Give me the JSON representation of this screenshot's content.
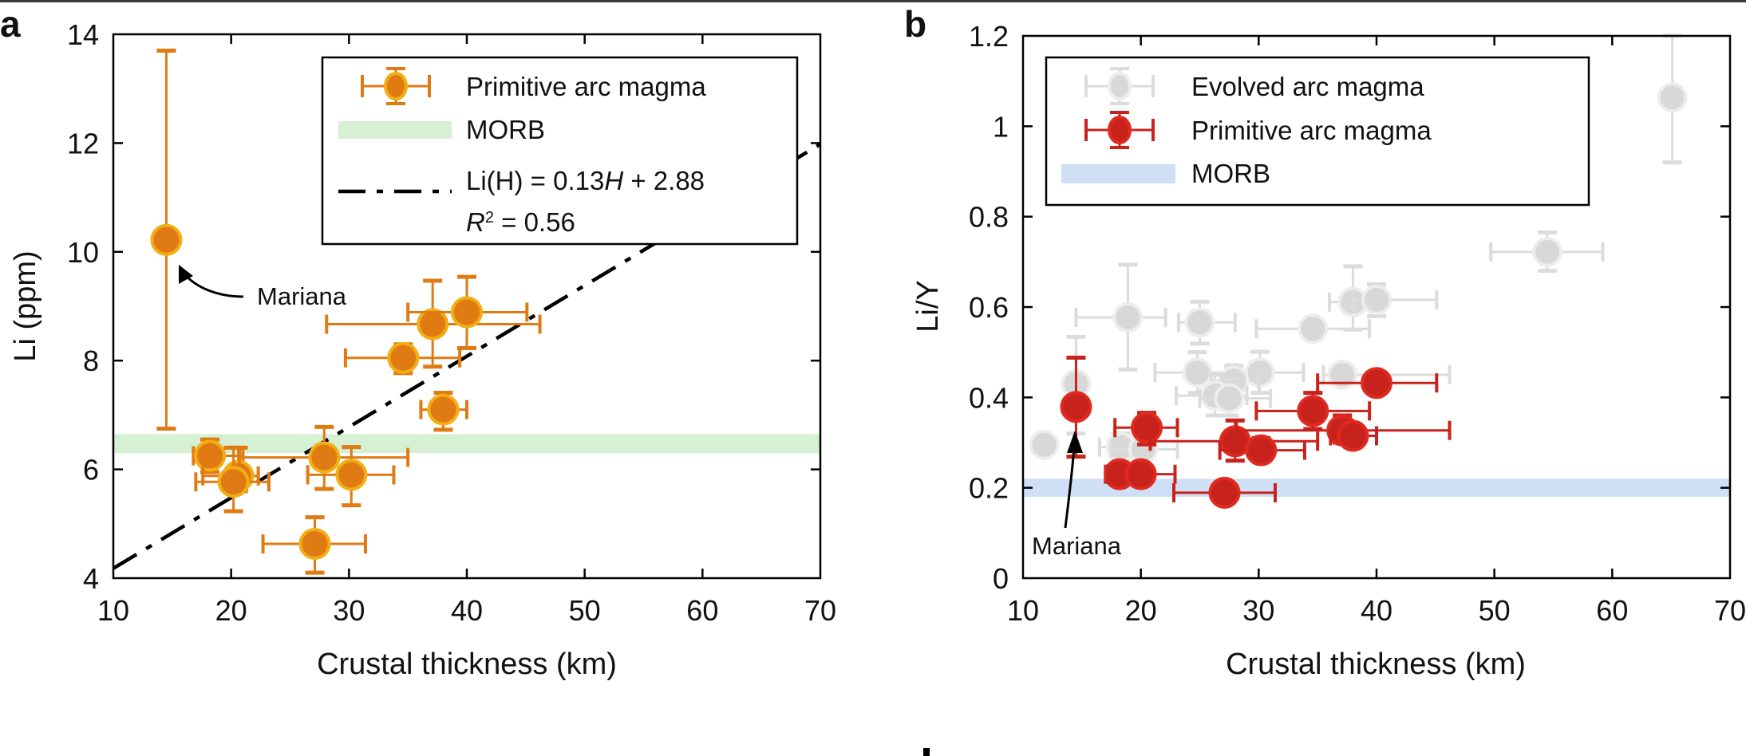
{
  "chart_data": [
    {
      "panel": "a",
      "type": "scatter",
      "title": "",
      "xlabel": "Crustal thickness (km)",
      "ylabel": "Li (ppm)",
      "xlim": [
        10,
        70
      ],
      "ylim": [
        4,
        14
      ],
      "xticks": [
        10,
        20,
        30,
        40,
        50,
        60,
        70
      ],
      "yticks": [
        4,
        6,
        8,
        10,
        12,
        14
      ],
      "grid": false,
      "legend_position": "top-right",
      "legend": [
        {
          "label": "Primitive arc magma",
          "kind": "marker",
          "series": "primitive"
        },
        {
          "label": "MORB",
          "kind": "band",
          "series": "morb"
        },
        {
          "label": "Li(H)  = 0.13H + 2.88",
          "label_parts": [
            "Li(H)  = 0.13",
            "H",
            " + 2.88"
          ],
          "line2_parts": [
            "R",
            "2",
            " = 0.56"
          ],
          "kind": "line",
          "series": "fit"
        }
      ],
      "colors": {
        "primitive_fill": "#E07B13",
        "primitive_ring": "#F2AE12",
        "primitive_err": "#E07B13",
        "morb": "#D6F0D4",
        "fit": "#000000"
      },
      "morb_band": [
        6.3,
        6.65
      ],
      "fit": {
        "slope": 0.13,
        "intercept": 2.88,
        "r2": 0.56,
        "x_range": [
          10,
          70
        ]
      },
      "series": [
        {
          "name": "Primitive arc magma",
          "points": [
            {
              "x": 14.5,
              "y": 10.22,
              "xerr": [
                14.5,
                14.5
              ],
              "yerr": [
                6.75,
                13.7
              ],
              "label": "Mariana"
            },
            {
              "x": 18.2,
              "y": 6.25,
              "xerr": [
                16.8,
                21.0
              ],
              "yerr": [
                5.95,
                6.55
              ]
            },
            {
              "x": 20.6,
              "y": 5.88,
              "xerr": [
                17.6,
                22.3
              ],
              "yerr": [
                5.6,
                6.4
              ]
            },
            {
              "x": 20.2,
              "y": 5.77,
              "xerr": [
                17.0,
                23.2
              ],
              "yerr": [
                5.23,
                6.4
              ]
            },
            {
              "x": 27.9,
              "y": 6.22,
              "xerr": [
                20.7,
                35.0
              ],
              "yerr": [
                5.64,
                6.78
              ]
            },
            {
              "x": 30.2,
              "y": 5.9,
              "xerr": [
                26.5,
                33.8
              ],
              "yerr": [
                5.34,
                6.41
              ]
            },
            {
              "x": 27.1,
              "y": 4.63,
              "xerr": [
                22.7,
                31.4
              ],
              "yerr": [
                4.1,
                5.12
              ]
            },
            {
              "x": 34.6,
              "y": 8.05,
              "xerr": [
                29.7,
                39.4
              ],
              "yerr": [
                7.77,
                8.3
              ]
            },
            {
              "x": 37.1,
              "y": 8.67,
              "xerr": [
                28.1,
                46.2
              ],
              "yerr": [
                7.89,
                9.47
              ]
            },
            {
              "x": 40.0,
              "y": 8.89,
              "xerr": [
                35.0,
                45.1
              ],
              "yerr": [
                8.23,
                9.54
              ]
            },
            {
              "x": 38.0,
              "y": 7.1,
              "xerr": [
                36.1,
                40.0
              ],
              "yerr": [
                6.73,
                7.41
              ]
            }
          ]
        }
      ],
      "annotations": [
        {
          "text": "Mariana",
          "target": {
            "x": 14.5,
            "y": 10.22
          }
        }
      ]
    },
    {
      "panel": "b",
      "type": "scatter",
      "title": "",
      "xlabel": "Crustal thickness (km)",
      "ylabel": "Li/Y",
      "xlim": [
        10,
        70
      ],
      "ylim": [
        0,
        1.2
      ],
      "xticks": [
        10,
        20,
        30,
        40,
        50,
        60,
        70
      ],
      "yticks": [
        0,
        0.2,
        0.4,
        0.6,
        0.8,
        1,
        1.2
      ],
      "ytick_labels": [
        "0",
        "0.2",
        "0.4",
        "0.6",
        "0.8",
        "1",
        "1.2"
      ],
      "grid": false,
      "legend_position": "top-left",
      "legend": [
        {
          "label": "Evolved arc magma",
          "kind": "marker",
          "series": "evolved"
        },
        {
          "label": "Primitive arc magma",
          "kind": "marker",
          "series": "primitive"
        },
        {
          "label": "MORB",
          "kind": "band",
          "series": "morb"
        }
      ],
      "colors": {
        "evolved_fill": "#D8D8D8",
        "evolved_ring": "#EDEDED",
        "evolved_err": "#DCDCDC",
        "primitive_fill": "#C8221C",
        "primitive_ring": "#E02A20",
        "primitive_err": "#C8221C",
        "morb": "#CFDFF5"
      },
      "morb_band": [
        0.18,
        0.22
      ],
      "series": [
        {
          "name": "Evolved arc magma",
          "points": [
            {
              "x": 11.8,
              "y": 0.295,
              "xerr": [
                11.8,
                11.8
              ],
              "yerr": [
                0.295,
                0.295
              ]
            },
            {
              "x": 14.5,
              "y": 0.43,
              "xerr": [
                14.5,
                14.5
              ],
              "yerr": [
                0.32,
                0.534
              ]
            },
            {
              "x": 18.9,
              "y": 0.577,
              "xerr": [
                14.5,
                22.1
              ],
              "yerr": [
                0.462,
                0.694
              ]
            },
            {
              "x": 25.0,
              "y": 0.566,
              "xerr": [
                23.2,
                28.0
              ],
              "yerr": [
                0.519,
                0.612
              ]
            },
            {
              "x": 24.8,
              "y": 0.455,
              "xerr": [
                21.2,
                28.0
              ],
              "yerr": [
                0.41,
                0.5
              ]
            },
            {
              "x": 30.1,
              "y": 0.455,
              "xerr": [
                27.5,
                33.8
              ],
              "yerr": [
                0.41,
                0.501
              ]
            },
            {
              "x": 27.9,
              "y": 0.437,
              "xerr": [
                26.0,
                30.0
              ],
              "yerr": [
                0.41,
                0.47
              ]
            },
            {
              "x": 26.3,
              "y": 0.404,
              "xerr": [
                23.0,
                29.0
              ],
              "yerr": [
                0.36,
                0.45
              ]
            },
            {
              "x": 27.5,
              "y": 0.398,
              "xerr": [
                25.0,
                31.0
              ],
              "yerr": [
                0.36,
                0.44
              ]
            },
            {
              "x": 34.6,
              "y": 0.552,
              "xerr": [
                29.8,
                39.4
              ],
              "yerr": [
                0.53,
                0.575
              ]
            },
            {
              "x": 38.0,
              "y": 0.611,
              "xerr": [
                36.0,
                39.5
              ],
              "yerr": [
                0.55,
                0.69
              ]
            },
            {
              "x": 40.0,
              "y": 0.616,
              "xerr": [
                38.0,
                45.1
              ],
              "yerr": [
                0.58,
                0.65
              ]
            },
            {
              "x": 37.1,
              "y": 0.45,
              "xerr": [
                35.5,
                46.2
              ],
              "yerr": [
                0.43,
                0.47
              ]
            },
            {
              "x": 18.3,
              "y": 0.29,
              "xerr": [
                16.5,
                21.0
              ],
              "yerr": [
                0.26,
                0.32
              ]
            },
            {
              "x": 20.2,
              "y": 0.285,
              "xerr": [
                17.5,
                23.1
              ],
              "yerr": [
                0.25,
                0.32
              ]
            },
            {
              "x": 54.5,
              "y": 0.722,
              "xerr": [
                49.7,
                59.2
              ],
              "yerr": [
                0.68,
                0.765
              ]
            },
            {
              "x": 65.1,
              "y": 1.064,
              "xerr": [
                65.1,
                65.1
              ],
              "yerr": [
                0.92,
                1.2
              ]
            }
          ]
        },
        {
          "name": "Primitive arc magma",
          "points": [
            {
              "x": 14.5,
              "y": 0.379,
              "xerr": [
                14.5,
                14.5
              ],
              "yerr": [
                0.269,
                0.488
              ],
              "label": "Mariana"
            },
            {
              "x": 20.5,
              "y": 0.333,
              "xerr": [
                17.8,
                23.1
              ],
              "yerr": [
                0.296,
                0.366
              ]
            },
            {
              "x": 18.2,
              "y": 0.23,
              "xerr": [
                17.0,
                20.5
              ],
              "yerr": [
                0.21,
                0.25
              ]
            },
            {
              "x": 20.0,
              "y": 0.23,
              "xerr": [
                17.2,
                22.9
              ],
              "yerr": [
                0.21,
                0.25
              ]
            },
            {
              "x": 27.1,
              "y": 0.189,
              "xerr": [
                22.8,
                31.4
              ],
              "yerr": [
                0.189,
                0.189
              ]
            },
            {
              "x": 28.0,
              "y": 0.303,
              "xerr": [
                20.8,
                35.0
              ],
              "yerr": [
                0.26,
                0.349
              ]
            },
            {
              "x": 30.2,
              "y": 0.283,
              "xerr": [
                26.7,
                33.9
              ],
              "yerr": [
                0.26,
                0.31
              ]
            },
            {
              "x": 34.6,
              "y": 0.37,
              "xerr": [
                29.8,
                39.4
              ],
              "yerr": [
                0.33,
                0.41
              ]
            },
            {
              "x": 37.1,
              "y": 0.327,
              "xerr": [
                28.1,
                46.2
              ],
              "yerr": [
                0.3,
                0.36
              ]
            },
            {
              "x": 38.0,
              "y": 0.315,
              "xerr": [
                36.1,
                40.0
              ],
              "yerr": [
                0.29,
                0.34
              ]
            },
            {
              "x": 40.0,
              "y": 0.432,
              "xerr": [
                35.0,
                45.1
              ],
              "yerr": [
                0.41,
                0.455
              ]
            }
          ]
        }
      ],
      "annotations": [
        {
          "text": "Mariana",
          "target": {
            "x": 14.5,
            "y": 0.379
          }
        }
      ]
    }
  ],
  "panels": {
    "a": {
      "letter": "a",
      "xlabel": "Crustal thickness (km)",
      "ylabel": "Li (ppm)",
      "annotation": "Mariana"
    },
    "b": {
      "letter": "b",
      "xlabel": "Crustal thickness (km)",
      "ylabel": "Li/Y",
      "annotation": "Mariana"
    }
  }
}
